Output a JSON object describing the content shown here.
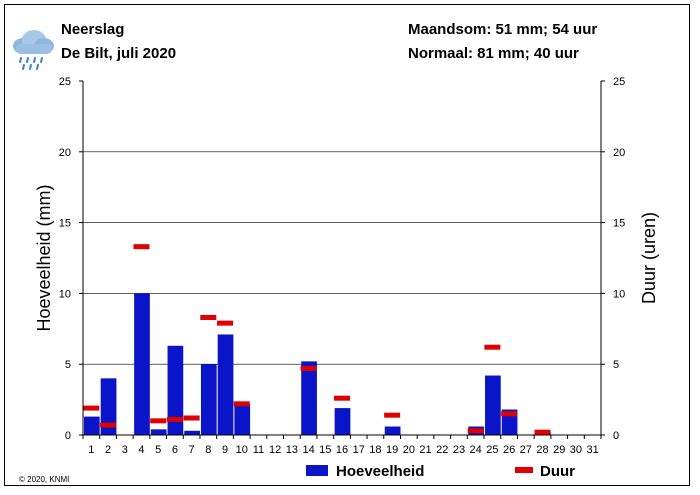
{
  "header": {
    "title": "Neerslag",
    "location": "De Bilt, juli 2020",
    "monthly_sum": "Maandsom: 51 mm; 54 uur",
    "normal": "Normaal: 81 mm; 40 uur"
  },
  "copyright": "© 2020, KNMI",
  "icon": "rain-cloud-icon",
  "colors": {
    "bar": "#0a14c8",
    "dash": "#e00000",
    "grid": "#000000"
  },
  "chart_data": {
    "type": "bar",
    "xlabel": "",
    "ylabel": "Hoeveelheid (mm)",
    "y2label": "Duur (uren)",
    "ylim": [
      0,
      25
    ],
    "y2lim": [
      0,
      25
    ],
    "yticks": [
      0,
      5,
      10,
      15,
      20,
      25
    ],
    "grid": true,
    "legend": {
      "position": "bottom",
      "entries": [
        "Hoeveelheid",
        "Duur"
      ]
    },
    "categories": [
      "1",
      "2",
      "3",
      "4",
      "5",
      "6",
      "7",
      "8",
      "9",
      "10",
      "11",
      "12",
      "13",
      "14",
      "15",
      "16",
      "17",
      "18",
      "19",
      "20",
      "21",
      "22",
      "23",
      "24",
      "25",
      "26",
      "27",
      "28",
      "29",
      "30",
      "31"
    ],
    "series": [
      {
        "name": "Hoeveelheid",
        "kind": "bar",
        "values": [
          1.3,
          4.0,
          0,
          10.0,
          0.4,
          6.3,
          0.3,
          5.0,
          7.1,
          2.2,
          0,
          0,
          0,
          5.2,
          0,
          1.9,
          0,
          0,
          0.6,
          0,
          0,
          0,
          0,
          0.6,
          4.2,
          1.8,
          0,
          0.2,
          0,
          0,
          0
        ]
      },
      {
        "name": "Duur",
        "kind": "dash",
        "values": [
          1.9,
          0.7,
          null,
          13.3,
          1.0,
          1.1,
          1.2,
          8.3,
          7.9,
          2.2,
          null,
          null,
          null,
          4.7,
          null,
          2.6,
          null,
          null,
          1.4,
          null,
          null,
          null,
          null,
          0.3,
          6.2,
          1.5,
          null,
          0.2,
          null,
          null,
          null
        ]
      }
    ]
  }
}
